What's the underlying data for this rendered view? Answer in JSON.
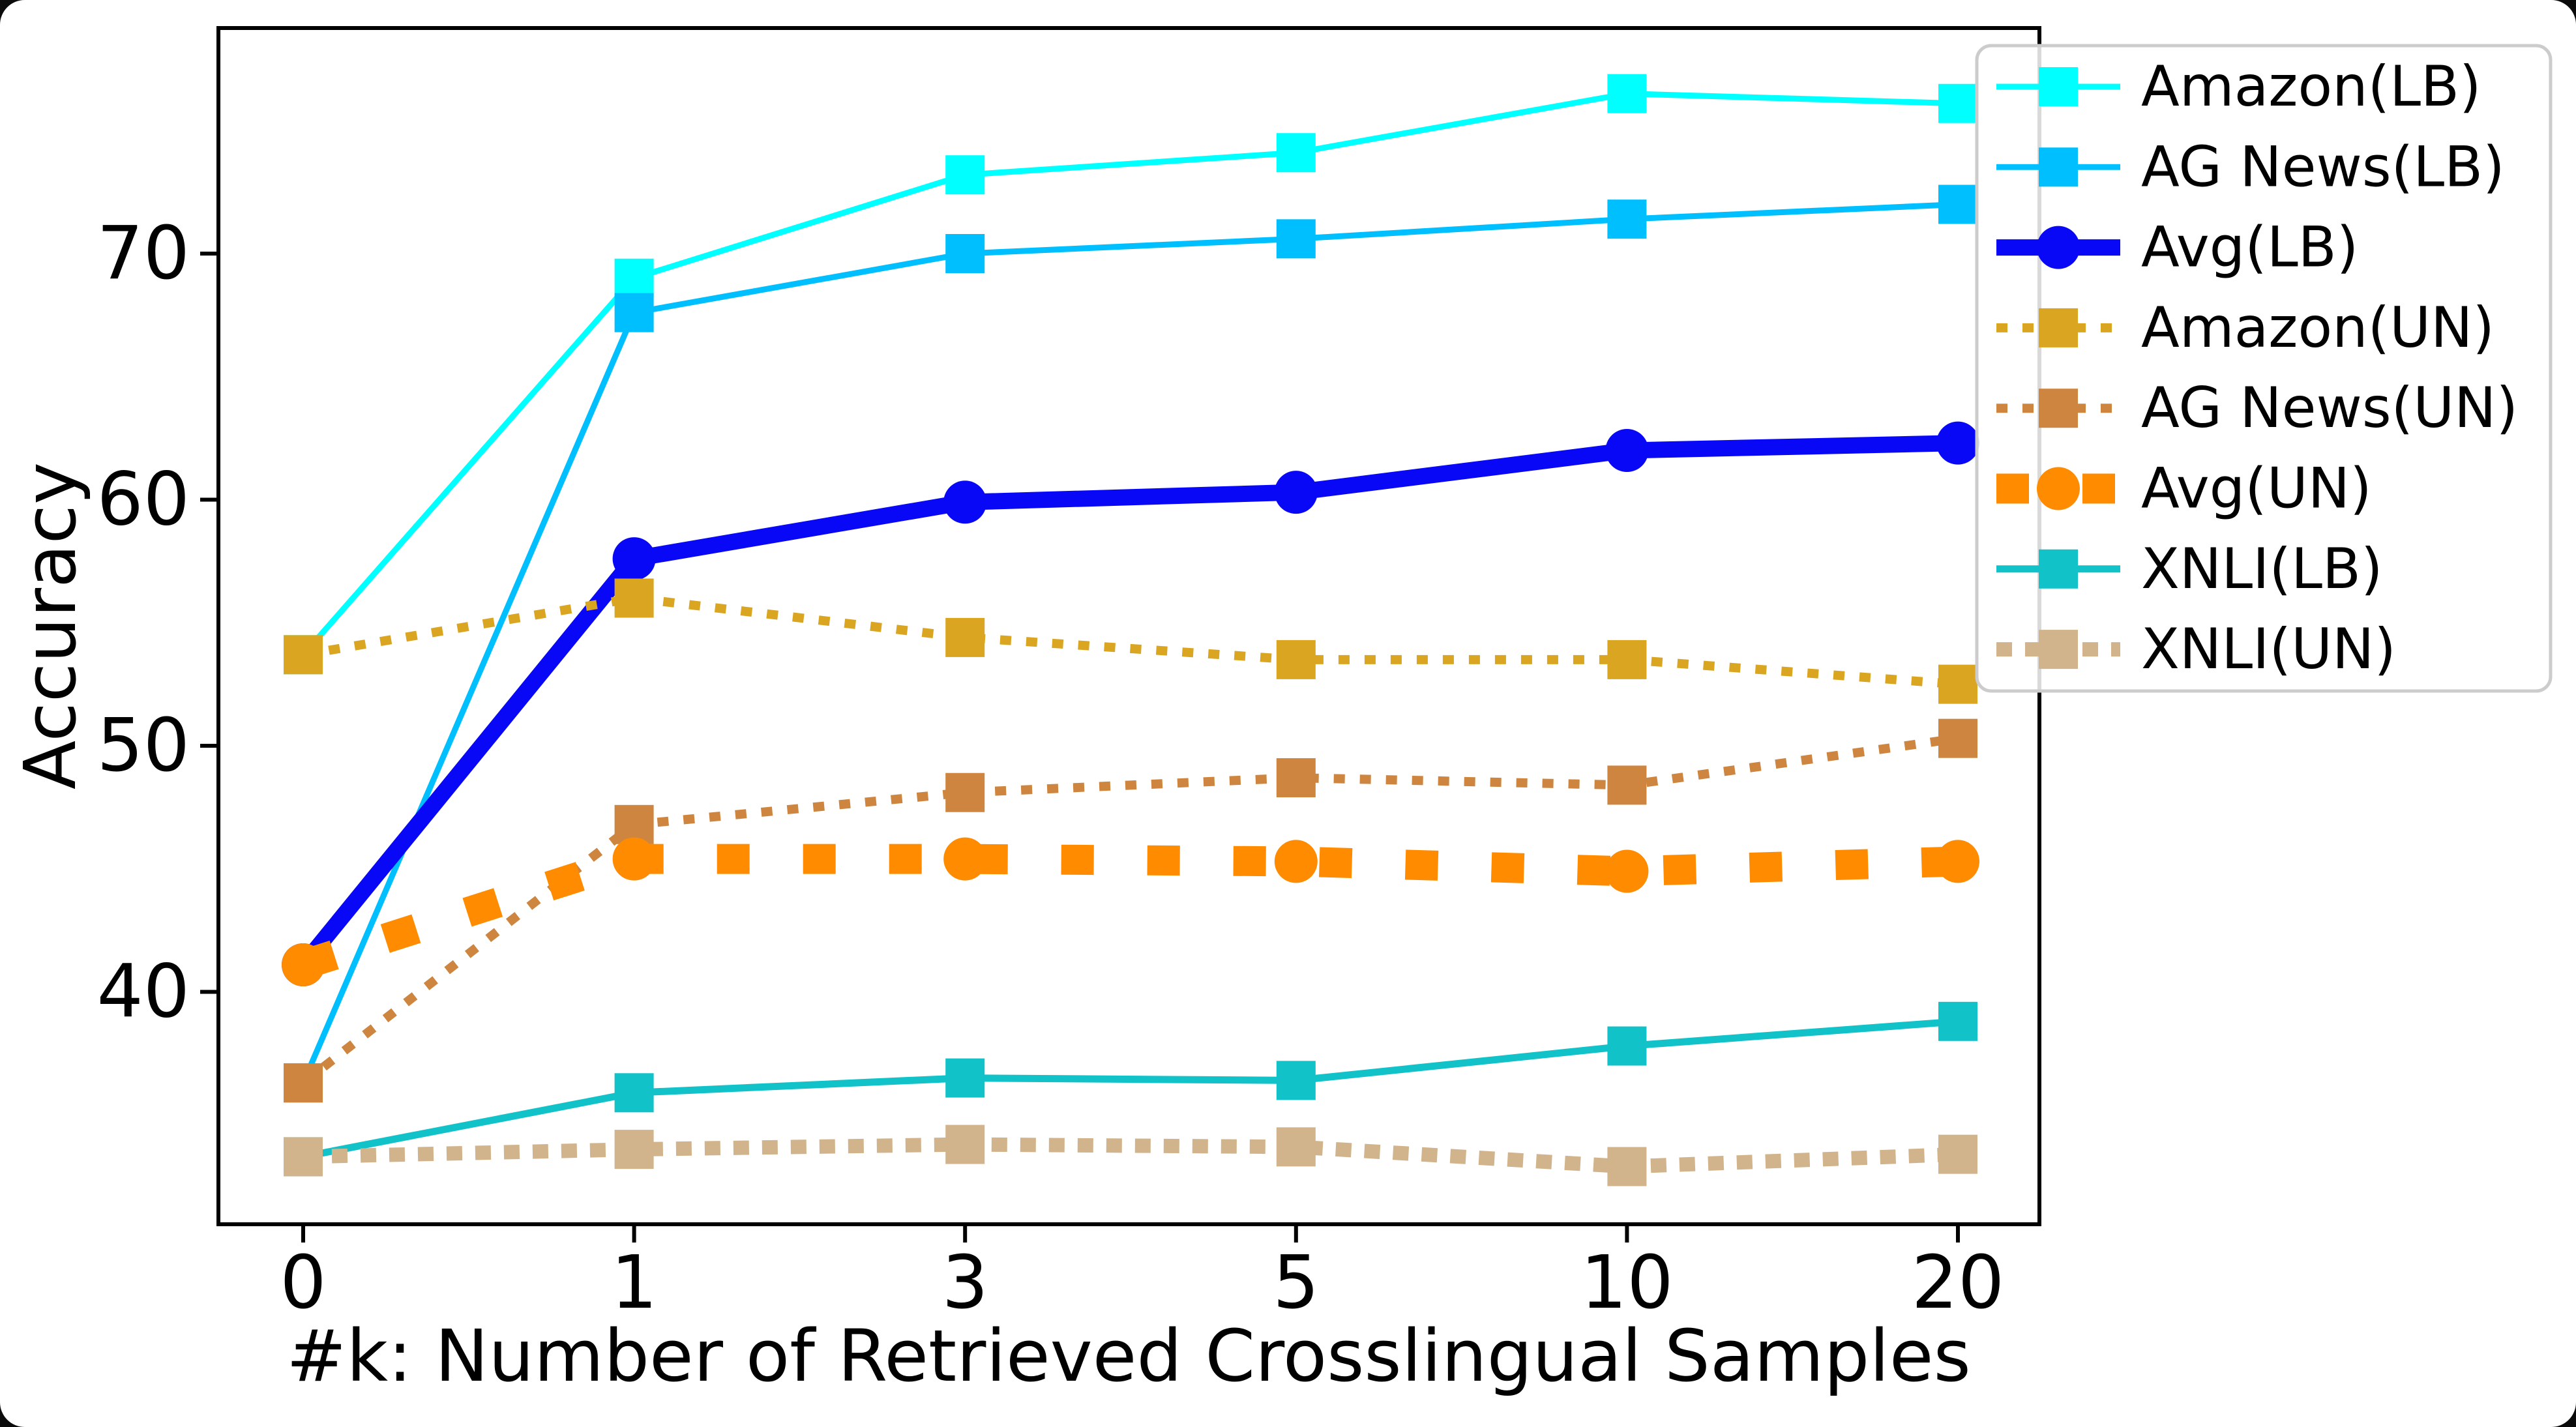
{
  "figure": {
    "background": "#ffffff",
    "outer_background": "#0b0b0b",
    "spine_color": "#000000",
    "legend_border_color": "#cccccc",
    "legend_fill": "#ffffff"
  },
  "chart_data": {
    "type": "line",
    "title": "",
    "xlabel": "#k: Number of Retrieved Crosslingual Samples",
    "ylabel": "Accuracy",
    "categories": [
      "0",
      "1",
      "3",
      "5",
      "10",
      "20"
    ],
    "y_ticks": [
      "40",
      "50",
      "60",
      "70"
    ],
    "y_tick_values": [
      40,
      50,
      60,
      70
    ],
    "ylim": [
      30.6,
      79.2
    ],
    "grid": false,
    "legend_position": "upper right",
    "series": [
      {
        "name": "Amazon(LB)",
        "color": "#00ffff",
        "line_style": "solid",
        "line_width": 9,
        "marker": "square",
        "values": [
          53.7,
          69.0,
          73.2,
          74.1,
          76.5,
          76.1
        ]
      },
      {
        "name": "AG News(LB)",
        "color": "#00bfff",
        "line_style": "solid",
        "line_width": 9,
        "marker": "square",
        "values": [
          36.3,
          67.6,
          70.0,
          70.6,
          71.4,
          72.0
        ]
      },
      {
        "name": "Avg(LB)",
        "color": "#0808f7",
        "line_style": "solid",
        "line_width": 25,
        "marker": "circle",
        "values": [
          41.1,
          57.6,
          59.9,
          60.3,
          62.0,
          62.3
        ]
      },
      {
        "name": "Amazon(UN)",
        "color": "#daa520",
        "line_style": "dotted",
        "line_width": 14,
        "marker": "square",
        "values": [
          53.7,
          56.0,
          54.4,
          53.5,
          53.5,
          52.5
        ]
      },
      {
        "name": "AG News(UN)",
        "color": "#cd853f",
        "line_style": "dotted",
        "line_width": 14,
        "marker": "square",
        "values": [
          36.3,
          46.8,
          48.1,
          48.7,
          48.4,
          50.3
        ]
      },
      {
        "name": "Avg(UN)",
        "color": "#ff8c00",
        "line_style": "dashed",
        "line_width": 46,
        "marker": "circle",
        "values": [
          41.1,
          45.4,
          45.4,
          45.3,
          44.9,
          45.3
        ]
      },
      {
        "name": "XNLI(LB)",
        "color": "#12c2c9",
        "line_style": "solid",
        "line_width": 11,
        "marker": "square",
        "values": [
          33.3,
          35.9,
          36.5,
          36.4,
          37.8,
          38.8
        ]
      },
      {
        "name": "XNLI(UN)",
        "color": "#d2b48c",
        "line_style": "dotted",
        "line_width": 22,
        "marker": "square",
        "values": [
          33.3,
          33.6,
          33.8,
          33.7,
          32.9,
          33.4
        ]
      }
    ]
  }
}
